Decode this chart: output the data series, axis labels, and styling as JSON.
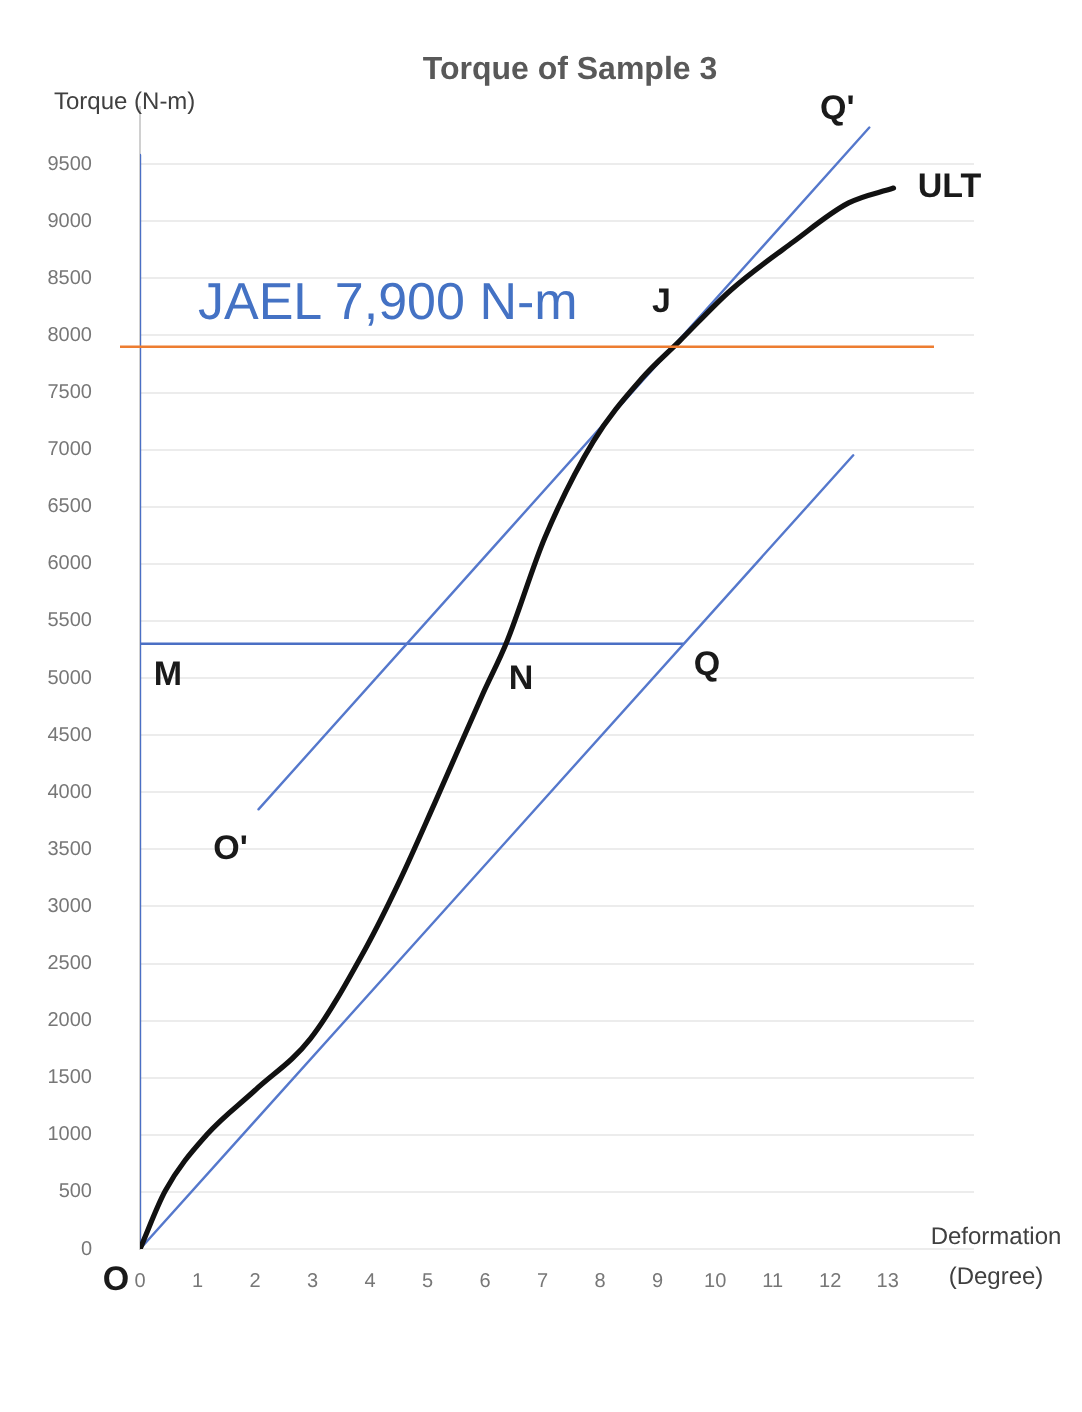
{
  "chart_data": {
    "type": "line",
    "title": "Torque of Sample 3",
    "xlabel": "Deformation (Degree)",
    "ylabel": "Torque (N-m)",
    "xlim": [
      0,
      14.5
    ],
    "xticks": [
      0,
      1,
      2,
      3,
      4,
      5,
      6,
      7,
      8,
      9,
      10,
      11,
      12,
      13
    ],
    "ylim": [
      0,
      10000
    ],
    "yticks": [
      0,
      500,
      1000,
      1500,
      2000,
      2500,
      3000,
      3500,
      4000,
      4500,
      5000,
      5500,
      6000,
      6500,
      7000,
      7500,
      8000,
      8500,
      9000,
      9500
    ],
    "grid": "y",
    "legend": false,
    "marker": "none",
    "line_style": "solid",
    "series": [
      {
        "color": "#111111",
        "x": [
          0,
          0.44,
          1.16,
          2,
          2.96,
          3.92,
          4.52,
          5.12,
          5.96,
          6.38,
          7.04,
          7.88,
          8.72,
          9.38,
          10.28,
          11.36,
          12.32,
          13.1
        ],
        "values": [
          0,
          510,
          1000,
          1390,
          1840,
          2630,
          3230,
          3900,
          4860,
          5320,
          6230,
          7070,
          7620,
          7950,
          8400,
          8820,
          9160,
          9290
        ]
      },
      {
        "color": "#5578cc",
        "x": [
          0,
          12.4
        ],
        "values": [
          0,
          6950
        ]
      },
      {
        "color": "#5578cc",
        "x": [
          2.06,
          12.68
        ],
        "values": [
          3850,
          9820
        ]
      },
      {
        "color": "#4a6fc4",
        "x": [
          0,
          9.44
        ],
        "values": [
          5300,
          5300
        ]
      },
      {
        "color": "#4a6fc4",
        "x": [
          0,
          0
        ],
        "values": [
          0,
          9580
        ]
      }
    ],
    "ref_lines": [
      {
        "axis": "y",
        "value": 7900,
        "color": "#ed7d31",
        "label": "JAEL 7,900 N-m"
      }
    ],
    "annotations": [
      {
        "text": "J",
        "x": 9.38,
        "y": 7950
      },
      {
        "text": "Q'",
        "x": 12.68,
        "y": 9820
      },
      {
        "text": "ULT",
        "x": 13.1,
        "y": 9290
      },
      {
        "text": "M",
        "x": 0,
        "y": 5300
      },
      {
        "text": "N",
        "x": 6.38,
        "y": 5320
      },
      {
        "text": "Q",
        "x": 9.44,
        "y": 5300
      },
      {
        "text": "O'",
        "x": 2.06,
        "y": 3850
      },
      {
        "text": "O",
        "x": 0,
        "y": 0
      }
    ]
  }
}
